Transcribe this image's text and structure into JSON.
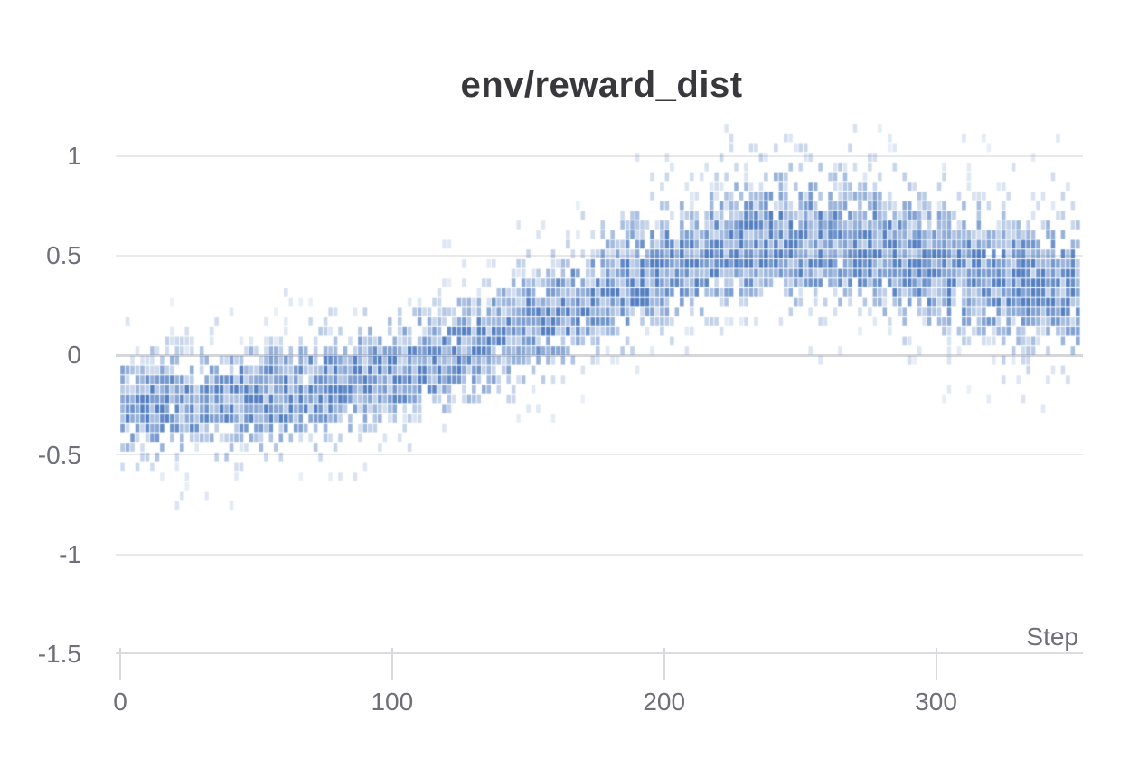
{
  "chart": {
    "title": "env/reward_dist",
    "xlabel": "Step"
  },
  "chart_data": {
    "type": "heatmap",
    "title": "env/reward_dist",
    "xlabel": "Step",
    "ylabel": "",
    "x_ticks": [
      0,
      100,
      200,
      300
    ],
    "y_ticks": [
      1,
      0.5,
      0,
      -0.5,
      -1,
      -1.5
    ],
    "xlim": [
      0,
      354
    ],
    "ylim": [
      -1.5,
      1.17
    ],
    "grid": "horizontal",
    "legend": "none",
    "colors": {
      "cell_base": "#2e63b4",
      "gridline": "#e9e9ec",
      "zero_line": "#d6d6da",
      "axis_line": "#dcdce0",
      "tick_label": "#6f6f7a",
      "title": "#37373c"
    },
    "distribution": {
      "description": "Per-step reward distribution rendered as vertical histogram bins; density mean rises from about -0.24 at step 0 to a peak near 0.55 around step 240, then settles near 0.33 by step 354. Sparse outliers span roughly -0.78 to 1.15.",
      "steps": [
        0,
        30,
        60,
        90,
        120,
        150,
        180,
        210,
        240,
        270,
        300,
        330,
        354
      ],
      "mean": [
        -0.24,
        -0.22,
        -0.19,
        -0.12,
        -0.02,
        0.14,
        0.3,
        0.46,
        0.55,
        0.52,
        0.42,
        0.36,
        0.33
      ],
      "sigma_hi": [
        0.16,
        0.16,
        0.16,
        0.17,
        0.18,
        0.19,
        0.21,
        0.24,
        0.25,
        0.25,
        0.24,
        0.23,
        0.22
      ],
      "sigma_lo": [
        0.17,
        0.17,
        0.17,
        0.17,
        0.17,
        0.16,
        0.16,
        0.17,
        0.18,
        0.18,
        0.2,
        0.21,
        0.21
      ]
    },
    "bins": {
      "step_bin_width": 1.82,
      "value_bin_height": 0.0485
    }
  }
}
